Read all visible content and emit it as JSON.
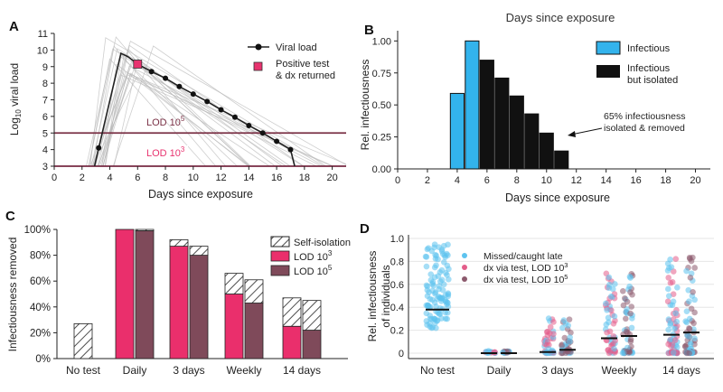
{
  "top_cutoff_text": "Days since exposure",
  "colors": {
    "viral_line": "#222222",
    "positive_test": "#e8336f",
    "lod5": "#7a3045",
    "lod3": "#e8336f",
    "infectious": "#33b3ec",
    "isolated": "#111111",
    "lod3_bar": "#ea2f6c",
    "lod5_bar": "#7f4a5a",
    "missed": "#5dc3ef",
    "dx_lod3": "#e35d8a",
    "dx_lod5": "#8c5a6d"
  },
  "chart_data": [
    {
      "panel": "A",
      "type": "line",
      "xlabel": "Days since exposure",
      "ylabel": "Log10 viral load",
      "xlim": [
        0,
        21
      ],
      "ylim": [
        3,
        11
      ],
      "xticks": [
        "0",
        "2",
        "4",
        "6",
        "8",
        "10",
        "12",
        "14",
        "16",
        "18",
        "20"
      ],
      "yticks": [
        "3",
        "4",
        "5",
        "6",
        "7",
        "8",
        "9",
        "10",
        "11"
      ],
      "series": [
        {
          "name": "Viral load",
          "x": [
            2.9,
            3.2,
            4.8,
            5.3,
            6.0,
            7.0,
            8.0,
            9.0,
            10.0,
            11.0,
            12.0,
            13.0,
            14.0,
            15.0,
            16.0,
            17.0,
            17.3
          ],
          "y": [
            3.0,
            4.1,
            9.8,
            9.6,
            9.15,
            8.7,
            8.3,
            7.8,
            7.35,
            6.9,
            6.4,
            5.95,
            5.45,
            5.0,
            4.5,
            4.0,
            3.0
          ]
        }
      ],
      "positive_test": {
        "name": "Positive test & dx returned",
        "x": 6.0,
        "y": 9.15
      },
      "hlines": [
        {
          "label": "LOD 10^5",
          "y": 5
        },
        {
          "label": "LOD 10^3",
          "y": 3
        }
      ]
    },
    {
      "panel": "B",
      "type": "bar",
      "xlabel": "Days since exposure",
      "ylabel": "Rel. infectiousness",
      "xlim": [
        0,
        21
      ],
      "ylim": [
        0,
        1.08
      ],
      "xticks": [
        "0",
        "2",
        "4",
        "6",
        "8",
        "10",
        "12",
        "14",
        "16",
        "18",
        "20"
      ],
      "yticks": [
        "0.00",
        "0.25",
        "0.50",
        "0.75",
        "1.00"
      ],
      "series": [
        {
          "name": "Infectious",
          "x": [
            4,
            5
          ],
          "values": [
            0.59,
            1.0
          ]
        },
        {
          "name": "Infectious but isolated",
          "x": [
            6,
            7,
            8,
            9,
            10,
            11
          ],
          "values": [
            0.85,
            0.71,
            0.57,
            0.43,
            0.28,
            0.14
          ]
        }
      ],
      "annotation": "65% infectiousness isolated & removed"
    },
    {
      "panel": "C",
      "type": "bar",
      "ylabel": "Infectiousness removed",
      "categories": [
        "No test",
        "Daily",
        "3 days",
        "Weekly",
        "14 days"
      ],
      "ylim": [
        0,
        100
      ],
      "yticks": [
        "0%",
        "20%",
        "40%",
        "60%",
        "80%",
        "100%"
      ],
      "series": [
        {
          "name": "LOD 10^3",
          "values": [
            0,
            100,
            87,
            50,
            25
          ]
        },
        {
          "name": "LOD 10^5",
          "values": [
            0,
            99,
            80,
            43,
            22
          ]
        },
        {
          "name": "Self-isolation",
          "values_lod3": [
            27,
            0,
            5,
            16,
            22
          ],
          "values_lod5": [
            0,
            1,
            7,
            18,
            23
          ]
        }
      ]
    },
    {
      "panel": "D",
      "type": "scatter",
      "ylabel": "Rel. infectiousness of individuals",
      "categories": [
        "No test",
        "Daily",
        "3 days",
        "Weekly",
        "14 days"
      ],
      "ylim": [
        0,
        1.0
      ],
      "yticks": [
        "0",
        "0.2",
        "0.4",
        "0.6",
        "0.8",
        "1.0"
      ],
      "series": [
        {
          "name": "Missed/caught late"
        },
        {
          "name": "dx via test, LOD 10^3"
        },
        {
          "name": "dx via test, LOD 10^5"
        }
      ],
      "medians": {
        "lod3": [
          0.38,
          0.0,
          0.01,
          0.13,
          0.16
        ],
        "lod5": [
          null,
          0.0,
          0.03,
          0.15,
          0.18
        ]
      }
    }
  ],
  "panel_a": {
    "letter": "A",
    "ylabel_main": "Log",
    "ylabel_sub": "10",
    "ylabel_rest": " viral load",
    "legend_viral": "Viral load",
    "legend_pos_1": "Positive test",
    "legend_pos_2": "& dx returned",
    "lod5_main": "LOD 10",
    "lod5_sup": "5",
    "lod3_main": "LOD 10",
    "lod3_sup": "3",
    "xlabel": "Days since exposure"
  },
  "panel_b": {
    "letter": "B",
    "ylabel": "Rel. infectiousness",
    "legend_infectious": "Infectious",
    "legend_isolated_1": "Infectious",
    "legend_isolated_2": "but isolated",
    "annot_1": "65% infectiousness",
    "annot_2": "isolated & removed",
    "xlabel": "Days since exposure"
  },
  "panel_c": {
    "letter": "C",
    "ylabel": "Infectiousness removed",
    "legend_self": "Self-isolation",
    "legend_lod3": "LOD 10",
    "legend_lod3_sup": "3",
    "legend_lod5": "LOD 10",
    "legend_lod5_sup": "5"
  },
  "panel_d": {
    "letter": "D",
    "ylabel_1": "Rel. infectiousness",
    "ylabel_2": "of individuals",
    "legend_missed": "Missed/caught late",
    "legend_lod3": "dx via test, LOD 10",
    "legend_lod3_sup": "3",
    "legend_lod5": "dx via test, LOD 10",
    "legend_lod5_sup": "5"
  }
}
